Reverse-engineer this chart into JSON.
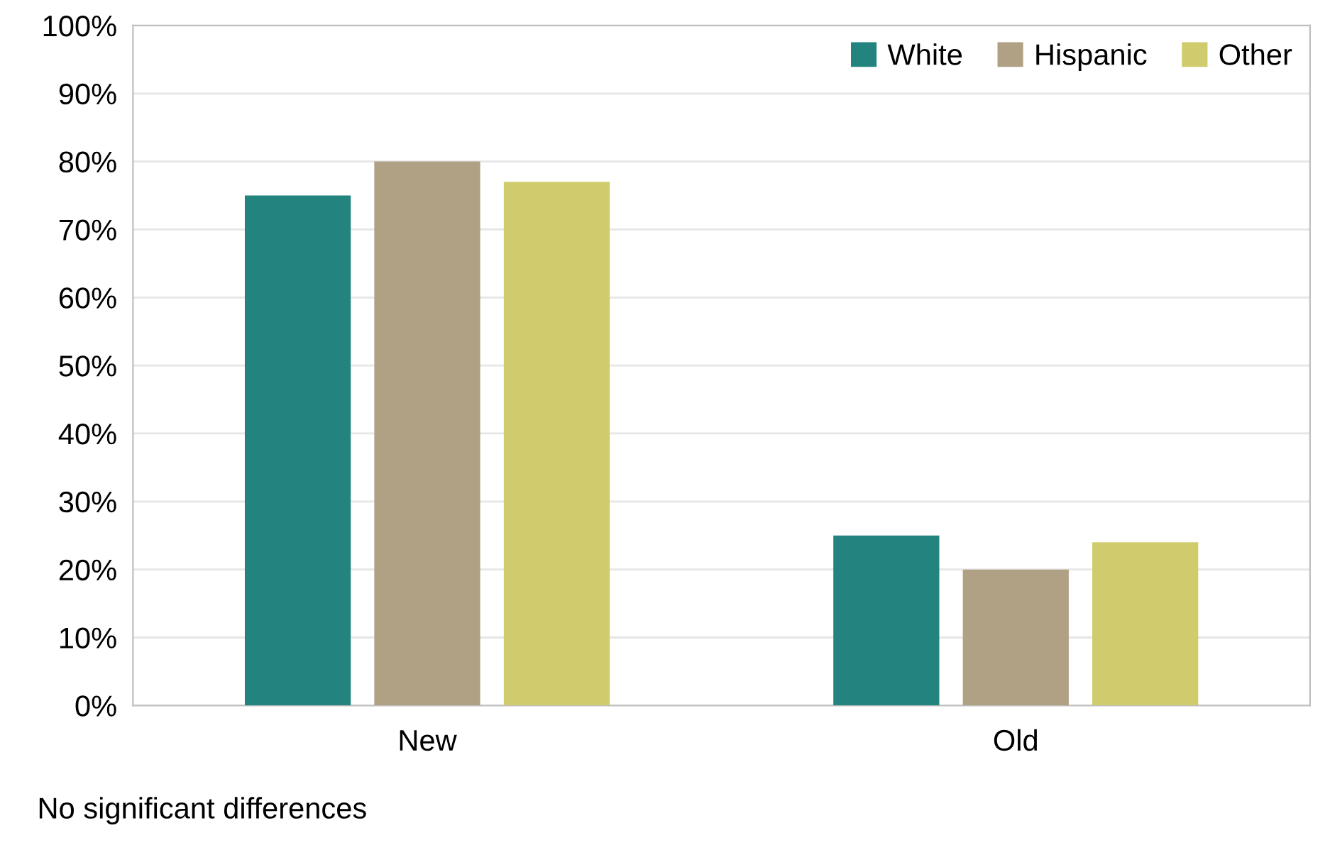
{
  "chart_data": {
    "type": "bar",
    "categories": [
      "New",
      "Old"
    ],
    "series": [
      {
        "name": "White",
        "color": "#22837f",
        "values": [
          75,
          25
        ]
      },
      {
        "name": "Hispanic",
        "color": "#b0a084",
        "values": [
          80,
          20
        ]
      },
      {
        "name": "Other",
        "color": "#d0cb6c",
        "values": [
          77,
          24
        ]
      }
    ],
    "ylim": [
      0,
      100
    ],
    "yticks": [
      {
        "value": 0,
        "label": "0%"
      },
      {
        "value": 10,
        "label": "10%"
      },
      {
        "value": 20,
        "label": "20%"
      },
      {
        "value": 30,
        "label": "30%"
      },
      {
        "value": 40,
        "label": "40%"
      },
      {
        "value": 50,
        "label": "50%"
      },
      {
        "value": 60,
        "label": "60%"
      },
      {
        "value": 70,
        "label": "70%"
      },
      {
        "value": 80,
        "label": "80%"
      },
      {
        "value": 90,
        "label": "90%"
      },
      {
        "value": 100,
        "label": "100%"
      }
    ],
    "grid": "y",
    "legend": "top right",
    "annotations": [
      "No significant differences"
    ]
  }
}
